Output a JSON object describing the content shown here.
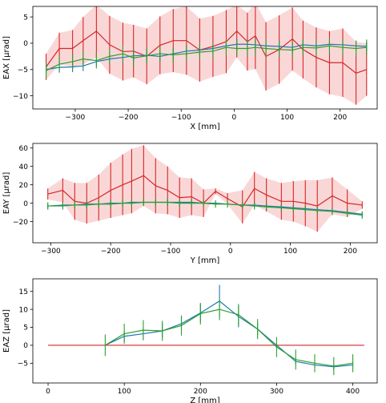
{
  "colors": {
    "red": "#d62728",
    "blue": "#1f77b4",
    "green": "#2ca02c",
    "band": "#f8c9c9"
  },
  "chart_data": [
    {
      "type": "line",
      "xlabel": "X [mm]",
      "ylabel": "EAX [µrad]",
      "xlim": [
        -380,
        270
      ],
      "ylim": [
        -12.5,
        7
      ],
      "xticks": [
        -300,
        -200,
        -100,
        0,
        100,
        200
      ],
      "yticks": [
        -10,
        -5,
        0,
        5
      ],
      "grid": false,
      "series": [
        {
          "color": "red",
          "x": [
            -355,
            -330,
            -305,
            -285,
            -260,
            -235,
            -210,
            -190,
            -165,
            -140,
            -115,
            -90,
            -65,
            -40,
            -15,
            5,
            25,
            40,
            60,
            85,
            110,
            130,
            155,
            180,
            205,
            230,
            250
          ],
          "y": [
            -4.5,
            -1.0,
            -1.0,
            0.5,
            2.3,
            -0.3,
            -1.6,
            -1.5,
            -2.5,
            -0.4,
            0.5,
            0.5,
            -1.3,
            -0.6,
            0.3,
            2.3,
            0.3,
            1.4,
            -2.5,
            -1.2,
            0.8,
            -1.2,
            -2.7,
            -3.7,
            -3.7,
            -5.7,
            -5.0
          ],
          "err": [
            2.5,
            3.0,
            3.5,
            4.5,
            5.0,
            5.5,
            5.5,
            5.0,
            5.3,
            5.5,
            6.0,
            6.5,
            6.0,
            5.8,
            6.0,
            5.0,
            5.5,
            6.3,
            6.5,
            6.5,
            6.0,
            5.5,
            5.7,
            6.0,
            6.5,
            6.0,
            5.0
          ]
        },
        {
          "color": "blue",
          "x": [
            -355,
            -330,
            -305,
            -285,
            -260,
            -235,
            -210,
            -190,
            -165,
            -140,
            -115,
            -90,
            -65,
            -40,
            -15,
            5,
            25,
            40,
            60,
            85,
            110,
            130,
            155,
            180,
            205,
            230,
            250
          ],
          "y": [
            -5.0,
            -4.6,
            -4.5,
            -4.3,
            -3.5,
            -3.0,
            -2.7,
            -2.4,
            -2.3,
            -2.5,
            -2.0,
            -1.5,
            -1.3,
            -1.0,
            -0.5,
            -0.2,
            -0.2,
            -0.3,
            -0.5,
            -0.6,
            -0.8,
            -0.3,
            -0.5,
            -0.2,
            -0.3,
            -0.5,
            -0.6
          ],
          "err": [
            1.0,
            1.0,
            1.0,
            1.0,
            1.0,
            1.0,
            1.0,
            1.0,
            1.0,
            1.0,
            1.0,
            1.0,
            1.0,
            1.0,
            1.0,
            1.0,
            1.0,
            1.0,
            1.0,
            1.0,
            1.0,
            1.0,
            1.0,
            1.0,
            1.0,
            1.0,
            1.0
          ]
        },
        {
          "color": "green",
          "x": [
            -355,
            -330,
            -305,
            -285,
            -260,
            -235,
            -210,
            -190,
            -165,
            -140,
            -115,
            -90,
            -65,
            -40,
            -15,
            5,
            25,
            40,
            60,
            85,
            110,
            130,
            155,
            180,
            205,
            230,
            250
          ],
          "y": [
            -5.2,
            -4.0,
            -3.5,
            -3.0,
            -3.3,
            -2.5,
            -2.0,
            -2.8,
            -2.4,
            -2.0,
            -2.2,
            -2.0,
            -1.7,
            -1.5,
            -0.8,
            -1.0,
            -1.0,
            -0.8,
            -1.0,
            -1.2,
            -1.3,
            -0.8,
            -0.9,
            -0.5,
            -0.8,
            -1.0,
            -0.8
          ],
          "err": [
            1.5,
            1.5,
            1.5,
            1.5,
            1.5,
            1.5,
            1.5,
            1.5,
            1.5,
            1.5,
            1.5,
            1.5,
            1.5,
            1.5,
            1.5,
            1.5,
            1.5,
            1.5,
            1.5,
            1.5,
            1.5,
            1.5,
            1.5,
            1.5,
            1.5,
            1.5,
            1.5
          ]
        }
      ],
      "band_series": "red"
    },
    {
      "type": "line",
      "xlabel": "Y [mm]",
      "ylabel": "EAY [µrad]",
      "xlim": [
        -330,
        245
      ],
      "ylim": [
        -43,
        65
      ],
      "xticks": [
        -300,
        -200,
        -100,
        0,
        100,
        200
      ],
      "yticks": [
        -20,
        0,
        20,
        40,
        60
      ],
      "grid": false,
      "series": [
        {
          "color": "red",
          "x": [
            -305,
            -280,
            -260,
            -240,
            -220,
            -200,
            -180,
            -165,
            -145,
            -125,
            -105,
            -85,
            -65,
            -45,
            -25,
            -5,
            20,
            40,
            60,
            85,
            105,
            125,
            145,
            170,
            195,
            220
          ],
          "y": [
            10,
            14,
            2,
            0,
            6,
            14,
            20,
            24,
            30,
            19,
            14,
            6,
            7,
            0,
            13,
            5,
            -4,
            16,
            9,
            2,
            2,
            0,
            -3,
            8,
            0,
            -2
          ],
          "err": [
            6,
            13,
            20,
            22,
            25,
            30,
            33,
            35,
            33,
            30,
            26,
            22,
            20,
            15,
            3,
            6,
            18,
            18,
            18,
            20,
            22,
            25,
            28,
            20,
            15,
            4
          ]
        },
        {
          "color": "blue",
          "x": [
            -305,
            -280,
            -260,
            -240,
            -220,
            -200,
            -180,
            -165,
            -145,
            -125,
            -105,
            -85,
            -65,
            -45,
            -25,
            -5,
            20,
            40,
            60,
            85,
            105,
            125,
            145,
            170,
            195,
            220
          ],
          "y": [
            -3,
            -2,
            -2,
            -1,
            -1,
            0,
            0,
            1,
            1,
            1,
            1,
            1,
            1,
            0,
            0,
            -1,
            -2,
            -2,
            -3,
            -4,
            -5,
            -6,
            -7,
            -8,
            -10,
            -12
          ],
          "err": [
            3,
            3,
            3,
            3,
            3,
            3,
            3,
            3,
            3,
            3,
            3,
            3,
            3,
            3,
            3,
            3,
            3,
            3,
            3,
            3,
            3,
            3,
            3,
            3,
            3,
            3
          ]
        },
        {
          "color": "green",
          "x": [
            -305,
            -280,
            -260,
            -240,
            -220,
            -200,
            -180,
            -165,
            -145,
            -125,
            -105,
            -85,
            -65,
            -45,
            -25,
            -5,
            20,
            40,
            60,
            85,
            105,
            125,
            145,
            170,
            195,
            220
          ],
          "y": [
            -3,
            -3,
            -2,
            -2,
            -1,
            -1,
            0,
            0,
            1,
            1,
            1,
            0,
            0,
            0,
            -1,
            -1,
            -2,
            -3,
            -4,
            -5,
            -6,
            -7,
            -8,
            -9,
            -11,
            -13
          ],
          "err": [
            4,
            4,
            4,
            4,
            4,
            4,
            4,
            4,
            4,
            4,
            4,
            4,
            4,
            4,
            4,
            4,
            4,
            4,
            4,
            4,
            4,
            4,
            4,
            4,
            4,
            4
          ]
        }
      ],
      "band_series": "red"
    },
    {
      "type": "line",
      "xlabel": "Z [mm]",
      "ylabel": "EAZ [µrad]",
      "xlim": [
        -20,
        432
      ],
      "ylim": [
        -10.5,
        18.5
      ],
      "xticks": [
        0,
        100,
        200,
        300,
        400
      ],
      "yticks": [
        -5,
        0,
        5,
        10,
        15
      ],
      "grid": false,
      "series": [
        {
          "color": "red",
          "x": [
            0,
            415
          ],
          "y": [
            0,
            0
          ],
          "err": [
            0,
            0
          ]
        },
        {
          "color": "blue",
          "x": [
            75,
            100,
            125,
            150,
            175,
            200,
            225,
            250,
            275,
            300,
            325,
            350,
            375,
            400
          ],
          "y": [
            0,
            2.5,
            3.2,
            4.0,
            6.0,
            9.0,
            12.3,
            8.0,
            4.5,
            0,
            -4.5,
            -5.5,
            -6.0,
            -5.5
          ],
          "err": [
            0,
            1.5,
            1.8,
            2.0,
            2.0,
            2.5,
            4.5,
            3.0,
            1.8,
            0.5,
            0.8,
            0.8,
            0.8,
            0.8
          ]
        },
        {
          "color": "green",
          "x": [
            75,
            100,
            125,
            150,
            175,
            200,
            225,
            250,
            275,
            300,
            325,
            350,
            375,
            400
          ],
          "y": [
            0,
            3.2,
            4.2,
            4.0,
            5.5,
            8.8,
            10.0,
            8.5,
            4.5,
            -0.5,
            -4.0,
            -5.0,
            -5.8,
            -5.0
          ],
          "err": [
            3.0,
            2.8,
            2.8,
            2.8,
            2.8,
            3.0,
            3.0,
            3.0,
            2.8,
            2.8,
            2.8,
            2.5,
            2.5,
            2.5
          ]
        }
      ],
      "band_series": ""
    }
  ]
}
